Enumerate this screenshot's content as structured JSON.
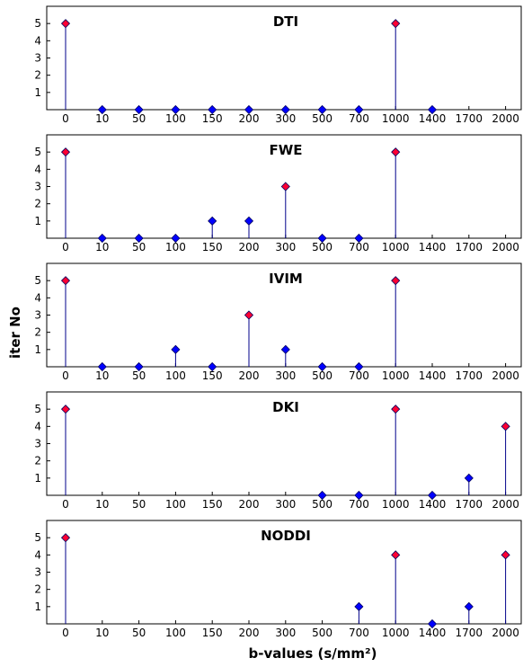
{
  "chart_data": {
    "type": "stem",
    "xlabel": "b-values (s/mm²)",
    "ylabel": "iter No",
    "categories": [
      "0",
      "10",
      "50",
      "100",
      "150",
      "200",
      "300",
      "500",
      "700",
      "1000",
      "1400",
      "1700",
      "2000"
    ],
    "tick_labels": [
      "0",
      "10",
      "50",
      "100",
      "150",
      "200",
      "300",
      "500",
      "700",
      "1000",
      "1400",
      "1700",
      "2000"
    ],
    "yticks": [
      "1",
      "2",
      "3",
      "4",
      "5"
    ],
    "ylim": [
      0,
      6
    ],
    "marker_colors": {
      "selected": "#ff0033",
      "other": "#0000ff"
    },
    "stem_color": "#00008b",
    "panels": [
      {
        "title": "DTI",
        "points": [
          {
            "b": "0",
            "value": 5,
            "marker": "selected"
          },
          {
            "b": "10",
            "value": 0,
            "marker": "other"
          },
          {
            "b": "50",
            "value": 0,
            "marker": "other"
          },
          {
            "b": "100",
            "value": 0,
            "marker": "other"
          },
          {
            "b": "150",
            "value": 0,
            "marker": "other"
          },
          {
            "b": "200",
            "value": 0,
            "marker": "other"
          },
          {
            "b": "300",
            "value": 0,
            "marker": "other"
          },
          {
            "b": "500",
            "value": 0,
            "marker": "other"
          },
          {
            "b": "700",
            "value": 0,
            "marker": "other"
          },
          {
            "b": "1000",
            "value": 5,
            "marker": "selected"
          },
          {
            "b": "1400",
            "value": 0,
            "marker": "other"
          }
        ]
      },
      {
        "title": "FWE",
        "points": [
          {
            "b": "0",
            "value": 5,
            "marker": "selected"
          },
          {
            "b": "10",
            "value": 0,
            "marker": "other"
          },
          {
            "b": "50",
            "value": 0,
            "marker": "other"
          },
          {
            "b": "100",
            "value": 0,
            "marker": "other"
          },
          {
            "b": "150",
            "value": 1,
            "marker": "other"
          },
          {
            "b": "200",
            "value": 1,
            "marker": "other"
          },
          {
            "b": "300",
            "value": 3,
            "marker": "selected"
          },
          {
            "b": "500",
            "value": 0,
            "marker": "other"
          },
          {
            "b": "700",
            "value": 0,
            "marker": "other"
          },
          {
            "b": "1000",
            "value": 5,
            "marker": "selected"
          }
        ]
      },
      {
        "title": "IVIM",
        "points": [
          {
            "b": "0",
            "value": 5,
            "marker": "selected"
          },
          {
            "b": "10",
            "value": 0,
            "marker": "other"
          },
          {
            "b": "50",
            "value": 0,
            "marker": "other"
          },
          {
            "b": "100",
            "value": 1,
            "marker": "other"
          },
          {
            "b": "150",
            "value": 0,
            "marker": "other"
          },
          {
            "b": "200",
            "value": 3,
            "marker": "selected"
          },
          {
            "b": "300",
            "value": 1,
            "marker": "other"
          },
          {
            "b": "500",
            "value": 0,
            "marker": "other"
          },
          {
            "b": "700",
            "value": 0,
            "marker": "other"
          },
          {
            "b": "1000",
            "value": 5,
            "marker": "selected"
          }
        ]
      },
      {
        "title": "DKI",
        "points": [
          {
            "b": "0",
            "value": 5,
            "marker": "selected"
          },
          {
            "b": "500",
            "value": 0,
            "marker": "other"
          },
          {
            "b": "700",
            "value": 0,
            "marker": "other"
          },
          {
            "b": "1000",
            "value": 5,
            "marker": "selected"
          },
          {
            "b": "1400",
            "value": 0,
            "marker": "other"
          },
          {
            "b": "1700",
            "value": 1,
            "marker": "other"
          },
          {
            "b": "2000",
            "value": 4,
            "marker": "selected"
          }
        ]
      },
      {
        "title": "NODDI",
        "points": [
          {
            "b": "0",
            "value": 5,
            "marker": "selected"
          },
          {
            "b": "700",
            "value": 1,
            "marker": "other"
          },
          {
            "b": "1000",
            "value": 4,
            "marker": "selected"
          },
          {
            "b": "1400",
            "value": 0,
            "marker": "other"
          },
          {
            "b": "1700",
            "value": 1,
            "marker": "other"
          },
          {
            "b": "2000",
            "value": 4,
            "marker": "selected"
          }
        ]
      }
    ]
  }
}
